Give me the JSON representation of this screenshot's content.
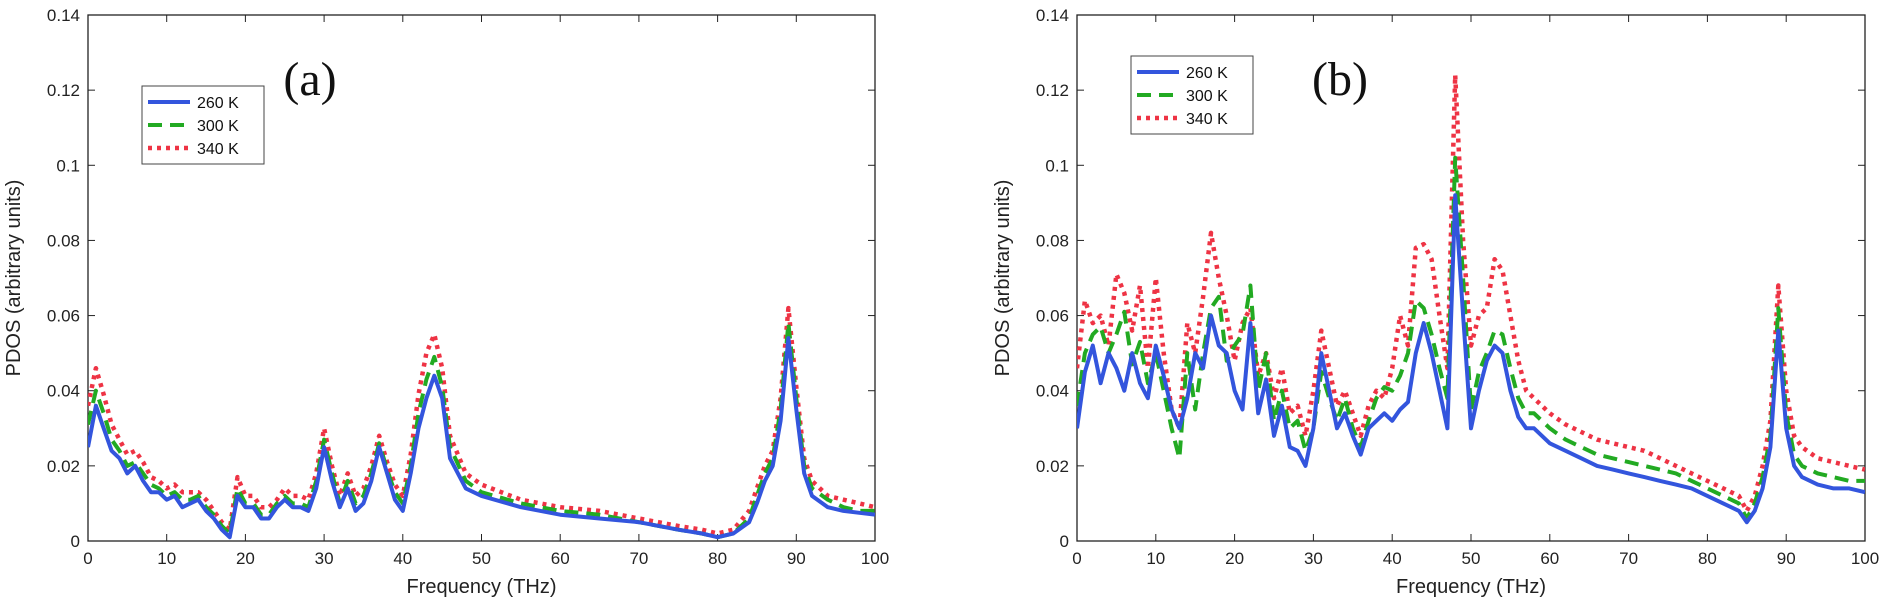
{
  "colors": {
    "s260": "#3355dd",
    "s300": "#22aa22",
    "s340": "#ee3344"
  },
  "chart_data": [
    {
      "type": "line",
      "panel_label": "(a)",
      "xlabel": "Frequency (THz)",
      "ylabel": "PDOS (arbitrary units)",
      "xlim": [
        0,
        100
      ],
      "ylim": [
        0,
        0.14
      ],
      "xticks": [
        "0",
        "10",
        "20",
        "30",
        "40",
        "50",
        "60",
        "70",
        "80",
        "90",
        "100"
      ],
      "yticks": [
        "0",
        "0.02",
        "0.04",
        "0.06",
        "0.08",
        "0.1",
        "0.12",
        "0.14"
      ],
      "legend_position": "upper-left",
      "series": [
        {
          "name": "260 K",
          "style": "solid",
          "x": [
            0,
            1,
            2,
            3,
            4,
            5,
            6,
            7,
            8,
            9,
            10,
            11,
            12,
            13,
            14,
            15,
            16,
            17,
            18,
            19,
            20,
            21,
            22,
            23,
            24,
            25,
            26,
            27,
            28,
            29,
            30,
            31,
            32,
            33,
            34,
            35,
            36,
            37,
            38,
            39,
            40,
            41,
            42,
            43,
            44,
            45,
            46,
            48,
            50,
            55,
            60,
            65,
            70,
            75,
            78,
            80,
            82,
            84,
            85,
            86,
            87,
            88,
            89,
            90,
            91,
            92,
            94,
            96,
            98,
            100
          ],
          "y": [
            0.025,
            0.036,
            0.03,
            0.024,
            0.022,
            0.018,
            0.02,
            0.016,
            0.013,
            0.013,
            0.011,
            0.012,
            0.009,
            0.01,
            0.011,
            0.008,
            0.006,
            0.003,
            0.001,
            0.012,
            0.009,
            0.009,
            0.006,
            0.006,
            0.009,
            0.011,
            0.009,
            0.009,
            0.008,
            0.014,
            0.025,
            0.016,
            0.009,
            0.014,
            0.008,
            0.01,
            0.016,
            0.025,
            0.018,
            0.011,
            0.008,
            0.018,
            0.03,
            0.038,
            0.044,
            0.038,
            0.022,
            0.014,
            0.012,
            0.009,
            0.007,
            0.006,
            0.005,
            0.003,
            0.002,
            0.001,
            0.002,
            0.005,
            0.01,
            0.016,
            0.02,
            0.032,
            0.054,
            0.035,
            0.018,
            0.012,
            0.009,
            0.008,
            0.0075,
            0.007
          ]
        },
        {
          "name": "300 K",
          "style": "dashed",
          "x": [
            0,
            1,
            2,
            3,
            4,
            5,
            6,
            7,
            8,
            9,
            10,
            11,
            12,
            13,
            14,
            15,
            16,
            17,
            18,
            19,
            20,
            21,
            22,
            23,
            24,
            25,
            26,
            27,
            28,
            29,
            30,
            31,
            32,
            33,
            34,
            35,
            36,
            37,
            38,
            39,
            40,
            41,
            42,
            43,
            44,
            45,
            46,
            48,
            50,
            55,
            60,
            65,
            70,
            75,
            78,
            80,
            82,
            84,
            85,
            86,
            87,
            88,
            89,
            90,
            91,
            92,
            94,
            96,
            98,
            100
          ],
          "y": [
            0.031,
            0.04,
            0.034,
            0.027,
            0.024,
            0.02,
            0.021,
            0.018,
            0.015,
            0.014,
            0.012,
            0.013,
            0.011,
            0.011,
            0.012,
            0.009,
            0.007,
            0.004,
            0.002,
            0.014,
            0.01,
            0.01,
            0.007,
            0.007,
            0.01,
            0.012,
            0.01,
            0.01,
            0.009,
            0.016,
            0.027,
            0.018,
            0.01,
            0.016,
            0.01,
            0.012,
            0.018,
            0.026,
            0.019,
            0.013,
            0.01,
            0.02,
            0.034,
            0.043,
            0.049,
            0.041,
            0.025,
            0.016,
            0.013,
            0.01,
            0.008,
            0.007,
            0.005,
            0.003,
            0.002,
            0.001,
            0.002,
            0.006,
            0.012,
            0.018,
            0.022,
            0.035,
            0.058,
            0.038,
            0.02,
            0.014,
            0.011,
            0.009,
            0.008,
            0.008
          ]
        },
        {
          "name": "340 K",
          "style": "dotted",
          "x": [
            0,
            1,
            2,
            3,
            4,
            5,
            6,
            7,
            8,
            9,
            10,
            11,
            12,
            13,
            14,
            15,
            16,
            17,
            18,
            19,
            20,
            21,
            22,
            23,
            24,
            25,
            26,
            27,
            28,
            29,
            30,
            31,
            32,
            33,
            34,
            35,
            36,
            37,
            38,
            39,
            40,
            41,
            42,
            43,
            44,
            45,
            46,
            48,
            50,
            55,
            60,
            65,
            70,
            75,
            78,
            80,
            82,
            84,
            85,
            86,
            87,
            88,
            89,
            90,
            91,
            92,
            94,
            96,
            98,
            100
          ],
          "y": [
            0.036,
            0.046,
            0.039,
            0.031,
            0.027,
            0.023,
            0.024,
            0.021,
            0.017,
            0.016,
            0.014,
            0.015,
            0.013,
            0.013,
            0.013,
            0.011,
            0.008,
            0.005,
            0.003,
            0.017,
            0.012,
            0.012,
            0.009,
            0.009,
            0.011,
            0.014,
            0.012,
            0.012,
            0.011,
            0.018,
            0.03,
            0.02,
            0.012,
            0.018,
            0.012,
            0.014,
            0.02,
            0.028,
            0.021,
            0.015,
            0.012,
            0.023,
            0.039,
            0.05,
            0.055,
            0.046,
            0.028,
            0.018,
            0.015,
            0.011,
            0.009,
            0.008,
            0.006,
            0.004,
            0.003,
            0.002,
            0.003,
            0.008,
            0.014,
            0.02,
            0.024,
            0.038,
            0.062,
            0.041,
            0.022,
            0.016,
            0.012,
            0.011,
            0.01,
            0.009
          ]
        }
      ]
    },
    {
      "type": "line",
      "panel_label": "(b)",
      "xlabel": "Frequency (THz)",
      "ylabel": "PDOS (arbitrary units)",
      "xlim": [
        0,
        100
      ],
      "ylim": [
        0,
        0.14
      ],
      "xticks": [
        "0",
        "10",
        "20",
        "30",
        "40",
        "50",
        "60",
        "70",
        "80",
        "90",
        "100"
      ],
      "yticks": [
        "0",
        "0.02",
        "0.04",
        "0.06",
        "0.08",
        "0.1",
        "0.12",
        "0.14"
      ],
      "legend_position": "upper-left",
      "series": [
        {
          "name": "260 K",
          "style": "solid",
          "x": [
            0,
            1,
            2,
            3,
            4,
            5,
            6,
            7,
            8,
            9,
            10,
            11,
            12,
            13,
            14,
            15,
            16,
            17,
            18,
            19,
            20,
            21,
            22,
            23,
            24,
            25,
            26,
            27,
            28,
            29,
            30,
            31,
            32,
            33,
            34,
            35,
            36,
            37,
            38,
            39,
            40,
            41,
            42,
            43,
            44,
            45,
            46,
            47,
            48,
            49,
            50,
            51,
            52,
            53,
            54,
            55,
            56,
            57,
            58,
            60,
            62,
            64,
            66,
            68,
            70,
            72,
            74,
            76,
            78,
            80,
            82,
            84,
            85,
            86,
            87,
            88,
            89,
            90,
            91,
            92,
            94,
            96,
            98,
            100
          ],
          "y": [
            0.03,
            0.045,
            0.052,
            0.042,
            0.05,
            0.046,
            0.04,
            0.05,
            0.042,
            0.038,
            0.052,
            0.044,
            0.035,
            0.03,
            0.038,
            0.05,
            0.046,
            0.06,
            0.052,
            0.05,
            0.04,
            0.035,
            0.058,
            0.034,
            0.043,
            0.028,
            0.036,
            0.025,
            0.024,
            0.02,
            0.03,
            0.05,
            0.04,
            0.03,
            0.034,
            0.028,
            0.023,
            0.03,
            0.032,
            0.034,
            0.032,
            0.035,
            0.037,
            0.05,
            0.058,
            0.05,
            0.04,
            0.03,
            0.092,
            0.06,
            0.03,
            0.04,
            0.048,
            0.052,
            0.05,
            0.04,
            0.033,
            0.03,
            0.03,
            0.026,
            0.024,
            0.022,
            0.02,
            0.019,
            0.018,
            0.017,
            0.016,
            0.015,
            0.014,
            0.012,
            0.01,
            0.008,
            0.005,
            0.008,
            0.014,
            0.025,
            0.056,
            0.03,
            0.02,
            0.017,
            0.015,
            0.014,
            0.014,
            0.013
          ]
        },
        {
          "name": "300 K",
          "style": "dashed",
          "x": [
            0,
            1,
            2,
            3,
            4,
            5,
            6,
            7,
            8,
            9,
            10,
            11,
            12,
            13,
            14,
            15,
            16,
            17,
            18,
            19,
            20,
            21,
            22,
            23,
            24,
            25,
            26,
            27,
            28,
            29,
            30,
            31,
            32,
            33,
            34,
            35,
            36,
            37,
            38,
            39,
            40,
            41,
            42,
            43,
            44,
            45,
            46,
            47,
            48,
            49,
            50,
            51,
            52,
            53,
            54,
            55,
            56,
            57,
            58,
            60,
            62,
            64,
            66,
            68,
            70,
            72,
            74,
            76,
            78,
            80,
            82,
            84,
            85,
            86,
            87,
            88,
            89,
            90,
            91,
            92,
            94,
            96,
            98,
            100
          ],
          "y": [
            0.036,
            0.05,
            0.055,
            0.057,
            0.05,
            0.055,
            0.061,
            0.047,
            0.053,
            0.042,
            0.05,
            0.04,
            0.03,
            0.022,
            0.05,
            0.035,
            0.05,
            0.062,
            0.065,
            0.048,
            0.052,
            0.055,
            0.068,
            0.04,
            0.05,
            0.032,
            0.04,
            0.03,
            0.032,
            0.024,
            0.03,
            0.045,
            0.038,
            0.032,
            0.038,
            0.03,
            0.025,
            0.032,
            0.038,
            0.041,
            0.04,
            0.044,
            0.05,
            0.064,
            0.062,
            0.055,
            0.046,
            0.038,
            0.102,
            0.07,
            0.035,
            0.045,
            0.05,
            0.056,
            0.055,
            0.046,
            0.038,
            0.034,
            0.034,
            0.03,
            0.027,
            0.025,
            0.023,
            0.022,
            0.021,
            0.02,
            0.019,
            0.018,
            0.016,
            0.014,
            0.012,
            0.01,
            0.006,
            0.01,
            0.017,
            0.028,
            0.062,
            0.034,
            0.023,
            0.02,
            0.018,
            0.017,
            0.016,
            0.016
          ]
        },
        {
          "name": "340 K",
          "style": "dotted",
          "x": [
            0,
            1,
            2,
            3,
            4,
            5,
            6,
            7,
            8,
            9,
            10,
            11,
            12,
            13,
            14,
            15,
            16,
            17,
            18,
            19,
            20,
            21,
            22,
            23,
            24,
            25,
            26,
            27,
            28,
            29,
            30,
            31,
            32,
            33,
            34,
            35,
            36,
            37,
            38,
            39,
            40,
            41,
            42,
            43,
            44,
            45,
            46,
            47,
            48,
            49,
            50,
            51,
            52,
            53,
            54,
            55,
            56,
            57,
            58,
            60,
            62,
            64,
            66,
            68,
            70,
            72,
            74,
            76,
            78,
            80,
            82,
            84,
            85,
            86,
            87,
            88,
            89,
            90,
            91,
            92,
            94,
            96,
            98,
            100
          ],
          "y": [
            0.046,
            0.064,
            0.058,
            0.06,
            0.052,
            0.071,
            0.066,
            0.056,
            0.068,
            0.046,
            0.07,
            0.05,
            0.035,
            0.03,
            0.058,
            0.05,
            0.065,
            0.082,
            0.07,
            0.06,
            0.048,
            0.058,
            0.062,
            0.044,
            0.05,
            0.038,
            0.046,
            0.034,
            0.036,
            0.028,
            0.04,
            0.056,
            0.046,
            0.036,
            0.04,
            0.034,
            0.028,
            0.036,
            0.04,
            0.038,
            0.046,
            0.06,
            0.052,
            0.078,
            0.079,
            0.075,
            0.06,
            0.046,
            0.124,
            0.08,
            0.052,
            0.06,
            0.062,
            0.075,
            0.072,
            0.06,
            0.048,
            0.04,
            0.038,
            0.034,
            0.031,
            0.029,
            0.027,
            0.026,
            0.025,
            0.024,
            0.022,
            0.02,
            0.018,
            0.016,
            0.014,
            0.012,
            0.008,
            0.012,
            0.02,
            0.032,
            0.068,
            0.04,
            0.028,
            0.025,
            0.022,
            0.021,
            0.02,
            0.019
          ]
        }
      ]
    }
  ]
}
